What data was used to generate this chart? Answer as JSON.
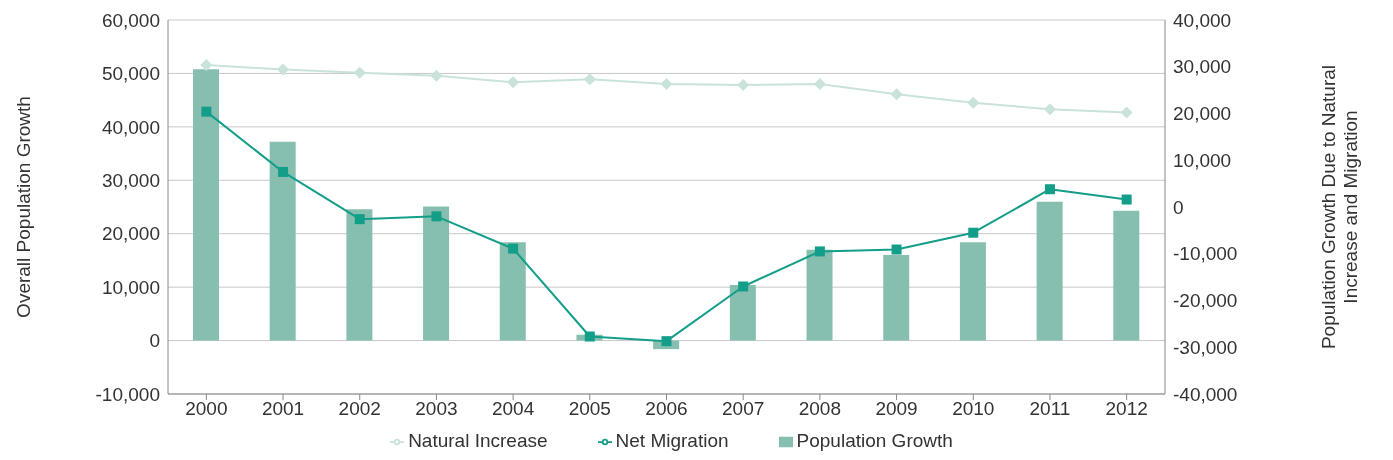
{
  "chart_data": {
    "type": "bar",
    "ylabel": "Overall Population Growth",
    "y2label": "Population Growth Due to Natural Increase and Migration",
    "categories": [
      "2000",
      "2001",
      "2002",
      "2003",
      "2004",
      "2005",
      "2006",
      "2007",
      "2008",
      "2009",
      "2010",
      "2011",
      "2012"
    ],
    "series": [
      {
        "name": "Population Growth",
        "color": "#86bfb0",
        "values": [
          50800,
          37200,
          24600,
          25100,
          18400,
          1100,
          -1600,
          10400,
          17000,
          16000,
          18400,
          26000,
          24300
        ]
      },
      {
        "name": "Natural Increase",
        "type": "line",
        "axis": "y2",
        "marker": "diamond",
        "color": "#c9e3da",
        "values": [
          30400,
          29400,
          28700,
          28100,
          26700,
          27300,
          26300,
          26100,
          26300,
          24100,
          22300,
          20900,
          20200
        ]
      },
      {
        "name": "Net Migration",
        "type": "line",
        "axis": "y2",
        "marker": "square",
        "color": "#139e8a",
        "values": [
          20400,
          7500,
          -2600,
          -2000,
          -8900,
          -27700,
          -28700,
          -17000,
          -9500,
          -9100,
          -5500,
          3800,
          1600
        ]
      }
    ],
    "ylim": [
      -10000,
      60000
    ],
    "yticks": [
      {
        "value": -10000,
        "label": "-10,000"
      },
      0,
      {
        "value": 10000,
        "label": "10,000"
      },
      {
        "value": 20000,
        "label": "20,000"
      },
      {
        "value": 30000,
        "label": "30,000"
      },
      {
        "value": 40000,
        "label": "40,000"
      },
      {
        "value": 50000,
        "label": "50,000"
      },
      {
        "value": 60000,
        "label": "60,000"
      }
    ],
    "y2lim": [
      -40000,
      40000
    ],
    "y2ticks": [
      {
        "value": -40000,
        "label": "-40,000"
      },
      {
        "value": -30000,
        "label": "-30,000"
      },
      {
        "value": -20000,
        "label": "-20,000"
      },
      {
        "value": -10000,
        "label": "-10,000"
      },
      0,
      {
        "value": 10000,
        "label": "10,000"
      },
      {
        "value": 20000,
        "label": "20,000"
      },
      {
        "value": 30000,
        "label": "30,000"
      },
      {
        "value": 40000,
        "label": "40,000"
      }
    ],
    "grid": "y",
    "legend": "bottom"
  }
}
